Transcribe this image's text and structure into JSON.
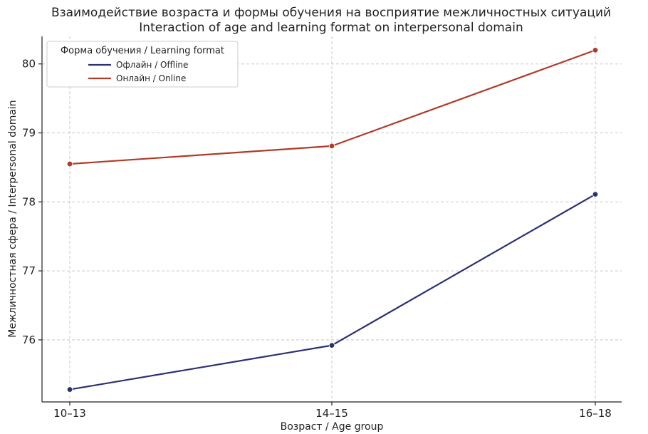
{
  "chart_data": {
    "type": "line",
    "title": "Взаимодействие возраста и формы обучения на восприятие межличностных ситуаций",
    "subtitle": "Interaction of age and learning format on interpersonal domain",
    "xlabel": "Возраст / Age group",
    "ylabel": "Межличностная сфера / Interpersonal domain",
    "categories": [
      "10–13",
      "14–15",
      "16–18"
    ],
    "yticks": [
      "76",
      "77",
      "78",
      "79",
      "80"
    ],
    "ylim": [
      75.1,
      80.4
    ],
    "grid": true,
    "legend": {
      "title": "Форма обучения / Learning format",
      "placement": "top-left"
    },
    "series": [
      {
        "name": "Офлайн / Offline",
        "color": "#2b3172",
        "values": [
          75.28,
          75.92,
          78.11
        ]
      },
      {
        "name": "Онлайн / Online",
        "color": "#b03a26",
        "values": [
          78.55,
          78.81,
          80.2
        ]
      }
    ]
  }
}
